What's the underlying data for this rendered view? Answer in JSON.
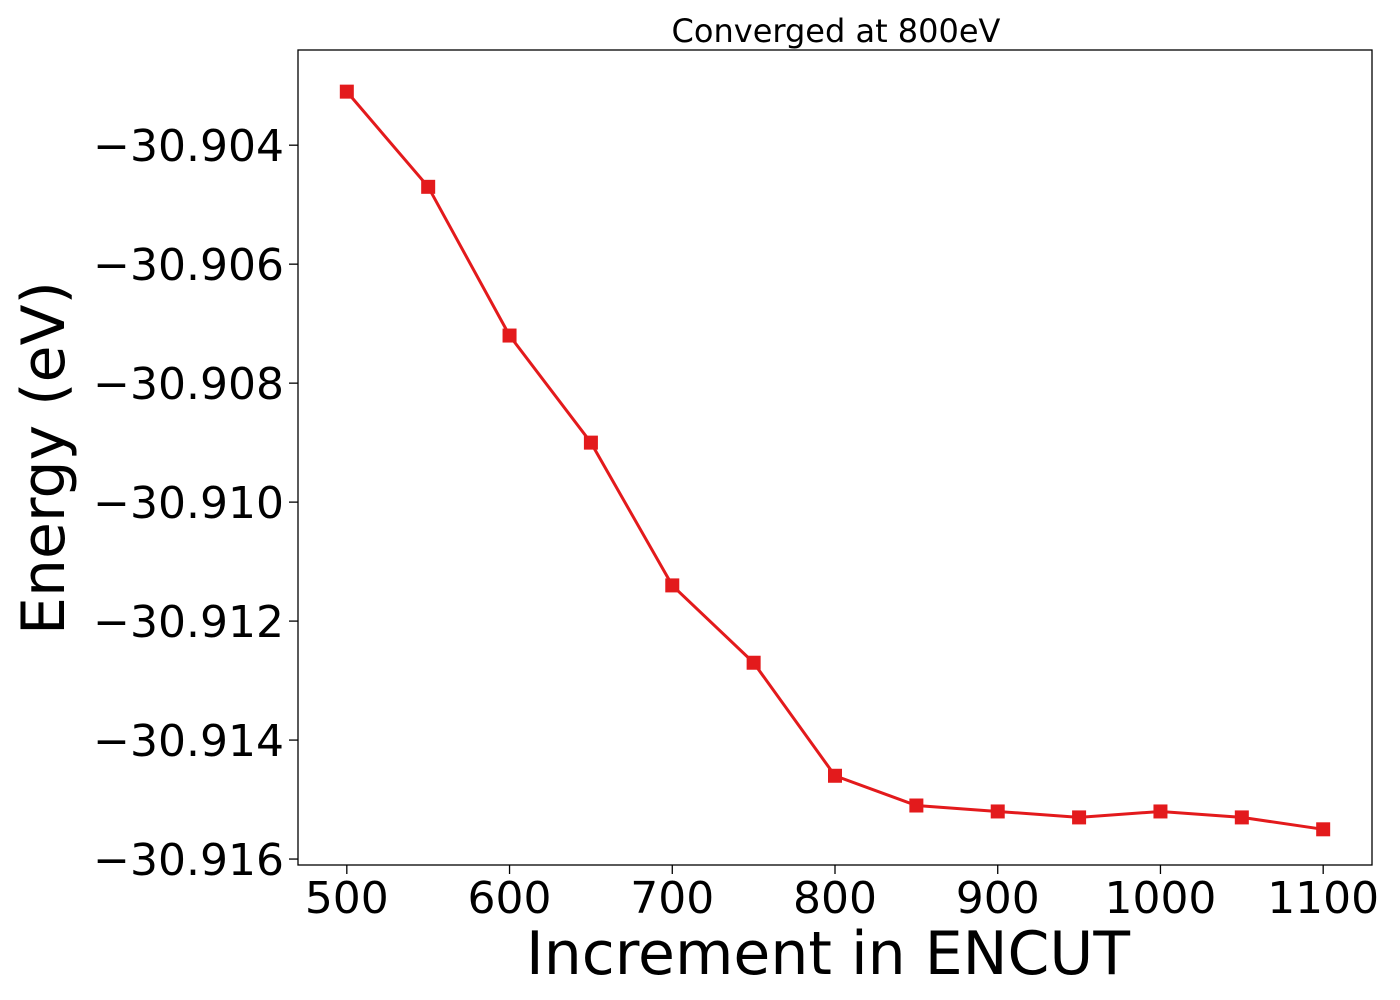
{
  "chart_data": {
    "type": "line",
    "title": "Converged at 800eV",
    "xlabel": "Increment in ENCUT",
    "ylabel": "Energy (eV)",
    "xlim": [
      470,
      1130
    ],
    "ylim": [
      -30.9161,
      -30.9024
    ],
    "xticks": [
      500,
      600,
      700,
      800,
      900,
      1000,
      1100
    ],
    "xtick_labels": [
      "500",
      "600",
      "700",
      "800",
      "900",
      "1000",
      "1100"
    ],
    "yticks": [
      -30.904,
      -30.906,
      -30.908,
      -30.91,
      -30.912,
      -30.914,
      -30.916
    ],
    "ytick_labels": [
      "−30.904",
      "−30.906",
      "−30.908",
      "−30.910",
      "−30.912",
      "−30.914",
      "−30.916"
    ],
    "grid": false,
    "legend": "none",
    "color": "#e31a1c",
    "marker": "square",
    "x": [
      500,
      550,
      600,
      650,
      700,
      750,
      800,
      850,
      900,
      950,
      1000,
      1050,
      1100
    ],
    "y": [
      -30.9031,
      -30.9047,
      -30.9072,
      -30.909,
      -30.9114,
      -30.9127,
      -30.9146,
      -30.9151,
      -30.9152,
      -30.9153,
      -30.9152,
      -30.9153,
      -30.9155
    ]
  }
}
